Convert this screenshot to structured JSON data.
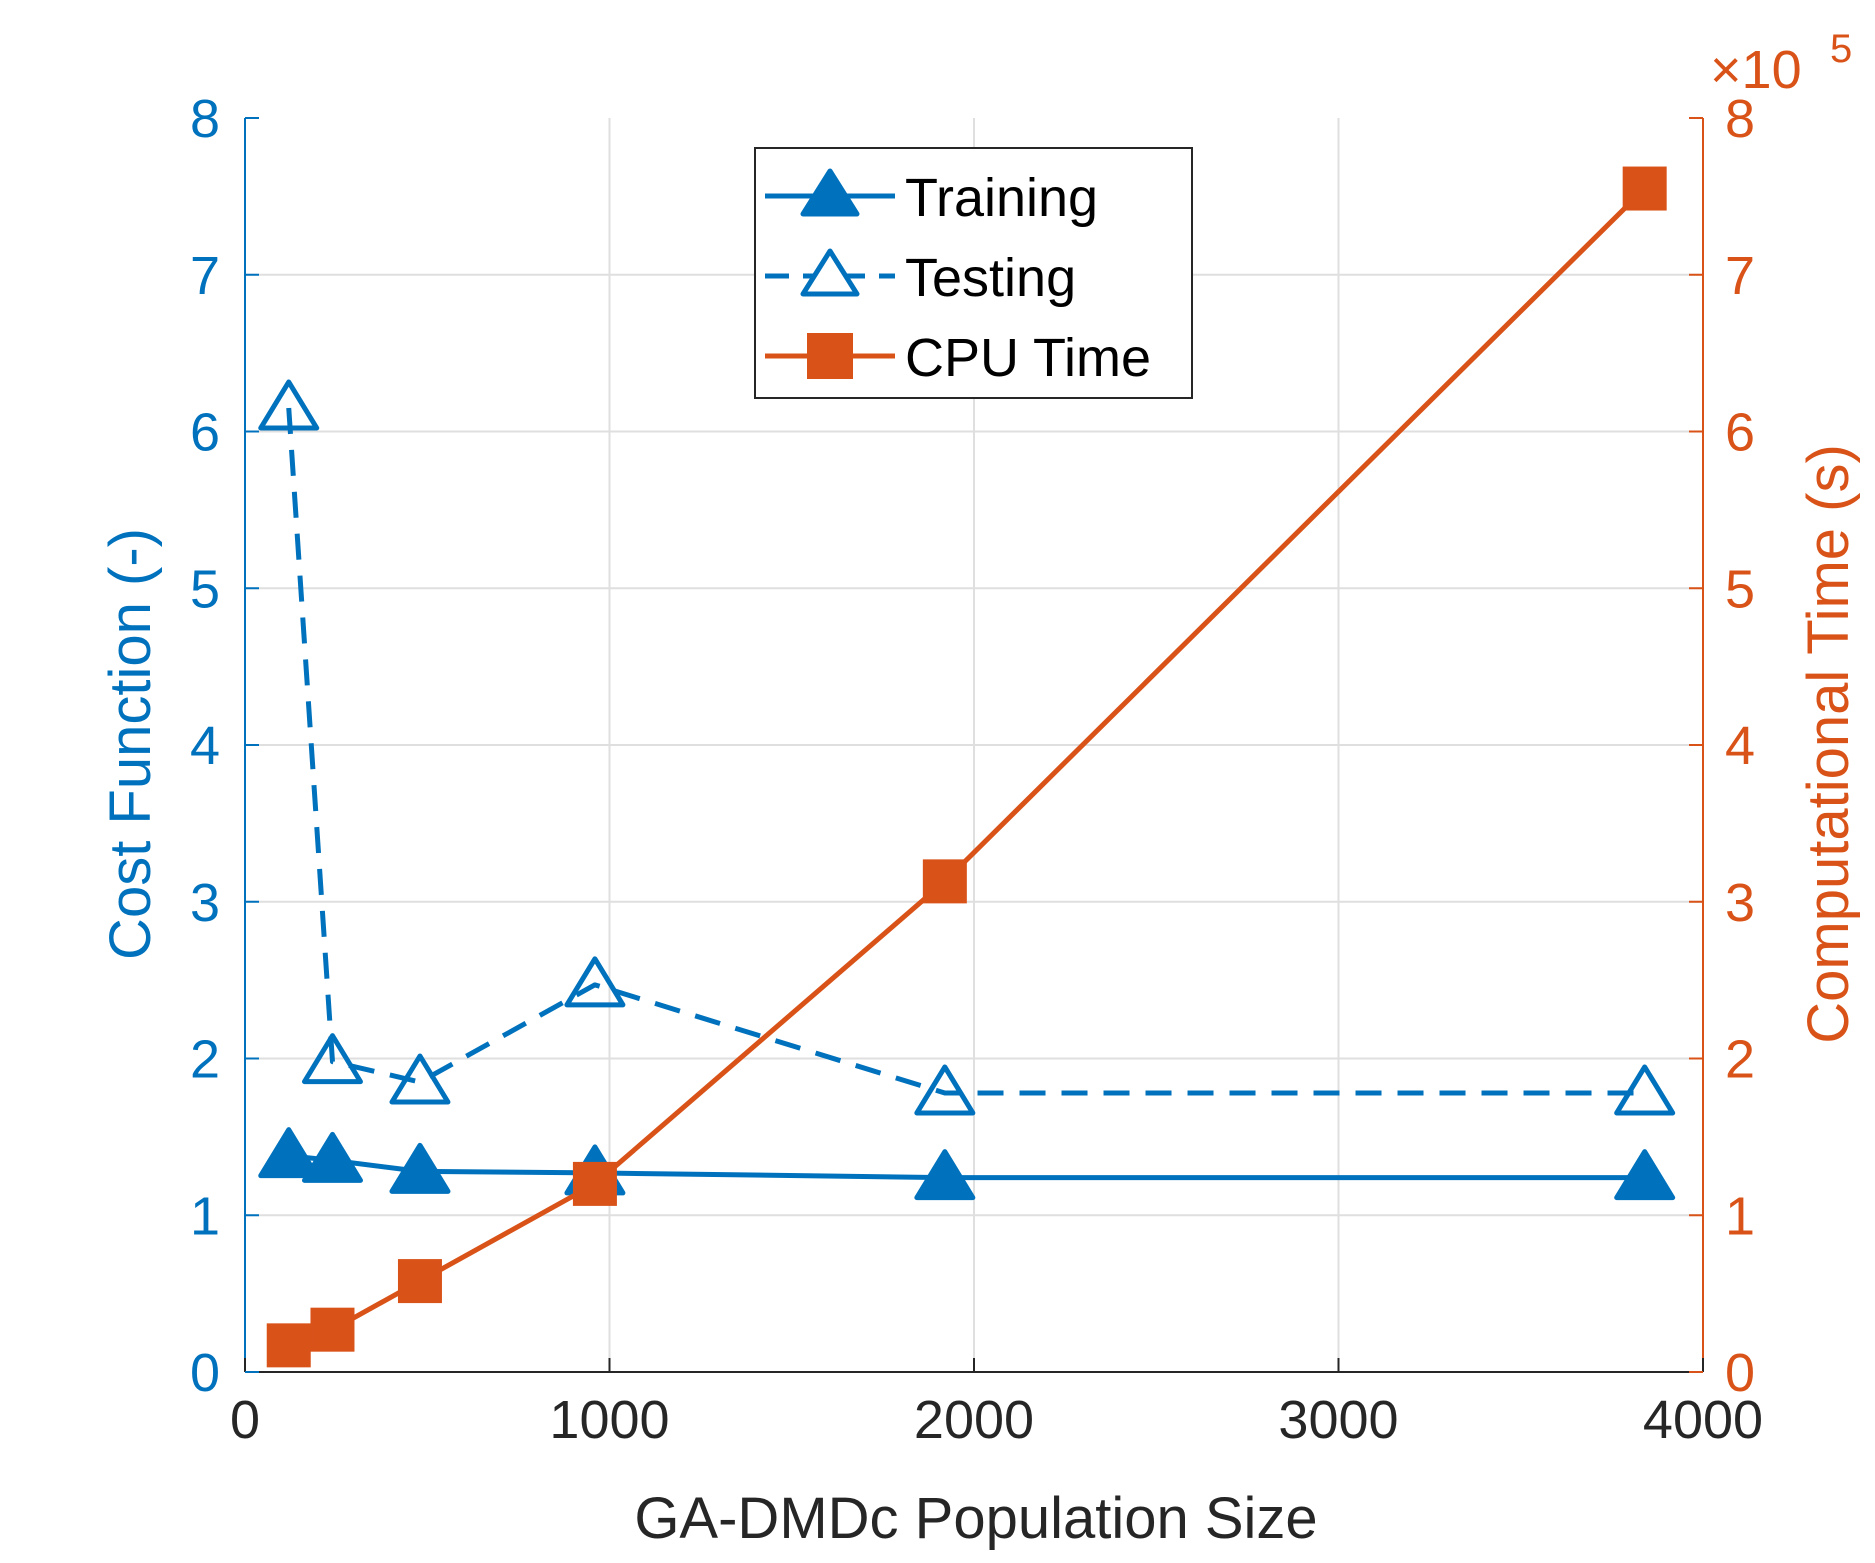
{
  "chart_data": {
    "type": "line",
    "title": "",
    "xlabel": "GA-DMDc Population Size",
    "ylabel_left": "Cost Function (-)",
    "ylabel_right": "Computational Time (s)",
    "right_axis_exponent_base": "×10",
    "right_axis_exponent_power": "5",
    "xlim": [
      0,
      4000
    ],
    "ylim_left": [
      0,
      8
    ],
    "ylim_right": [
      0,
      8
    ],
    "x_ticks": [
      "0",
      "1000",
      "2000",
      "3000",
      "4000"
    ],
    "y_left_ticks": [
      "0",
      "1",
      "2",
      "3",
      "4",
      "5",
      "6",
      "7",
      "8"
    ],
    "y_right_ticks": [
      "0",
      "1",
      "2",
      "3",
      "4",
      "5",
      "6",
      "7",
      "8"
    ],
    "grid": true,
    "legend_position": "top-center",
    "colors": {
      "blue": "#0072BD",
      "orange": "#D95319",
      "axis": "#262626",
      "grid": "#dfdfdf"
    },
    "series": [
      {
        "name": "Training",
        "axis": "left",
        "line_style": "solid",
        "marker": "filled-triangle",
        "color": "#0072BD",
        "x": [
          120,
          240,
          480,
          960,
          1920,
          3840
        ],
        "values": [
          1.38,
          1.35,
          1.28,
          1.27,
          1.24,
          1.24
        ]
      },
      {
        "name": "Testing",
        "axis": "left",
        "line_style": "dashed",
        "marker": "open-triangle",
        "color": "#0072BD",
        "x": [
          120,
          240,
          480,
          960,
          1920,
          3840
        ],
        "values": [
          6.15,
          1.98,
          1.85,
          2.47,
          1.78,
          1.78
        ]
      },
      {
        "name": "CPU Time",
        "axis": "right",
        "line_style": "solid",
        "marker": "filled-square",
        "color": "#D95319",
        "x": [
          120,
          240,
          480,
          960,
          1920,
          3840
        ],
        "values": [
          0.17,
          0.27,
          0.58,
          1.2,
          3.13,
          7.55
        ]
      }
    ]
  }
}
